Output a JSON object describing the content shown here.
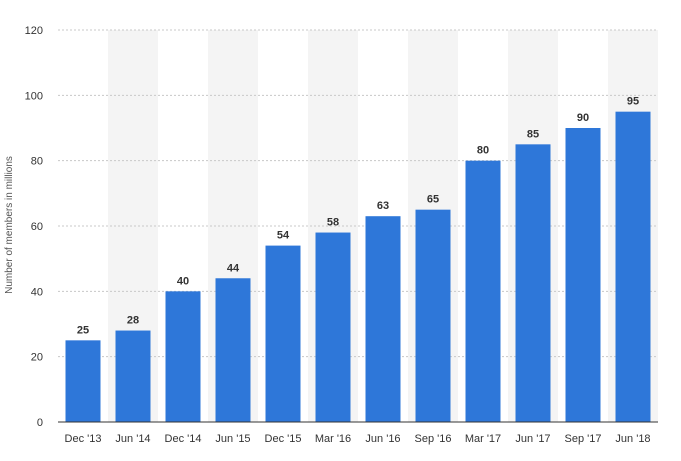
{
  "chart_data": {
    "type": "bar",
    "title": "",
    "xlabel": "",
    "ylabel": "Number of members in millions",
    "categories": [
      "Dec '13",
      "Jun '14",
      "Dec '14",
      "Jun '15",
      "Dec '15",
      "Mar '16",
      "Jun '16",
      "Sep '16",
      "Mar '17",
      "Jun '17",
      "Sep '17",
      "Jun '18"
    ],
    "values": [
      25,
      28,
      40,
      44,
      54,
      58,
      63,
      65,
      80,
      85,
      90,
      95
    ],
    "ylim": [
      0,
      120
    ],
    "yticks": [
      0,
      20,
      40,
      60,
      80,
      100,
      120
    ],
    "grid": "horizontal dotted",
    "data_labels": true,
    "colors": {
      "bar": "#2e77d9",
      "grid": "#c8c8c8",
      "band": "#f4f4f4",
      "axis": "#333333"
    }
  }
}
